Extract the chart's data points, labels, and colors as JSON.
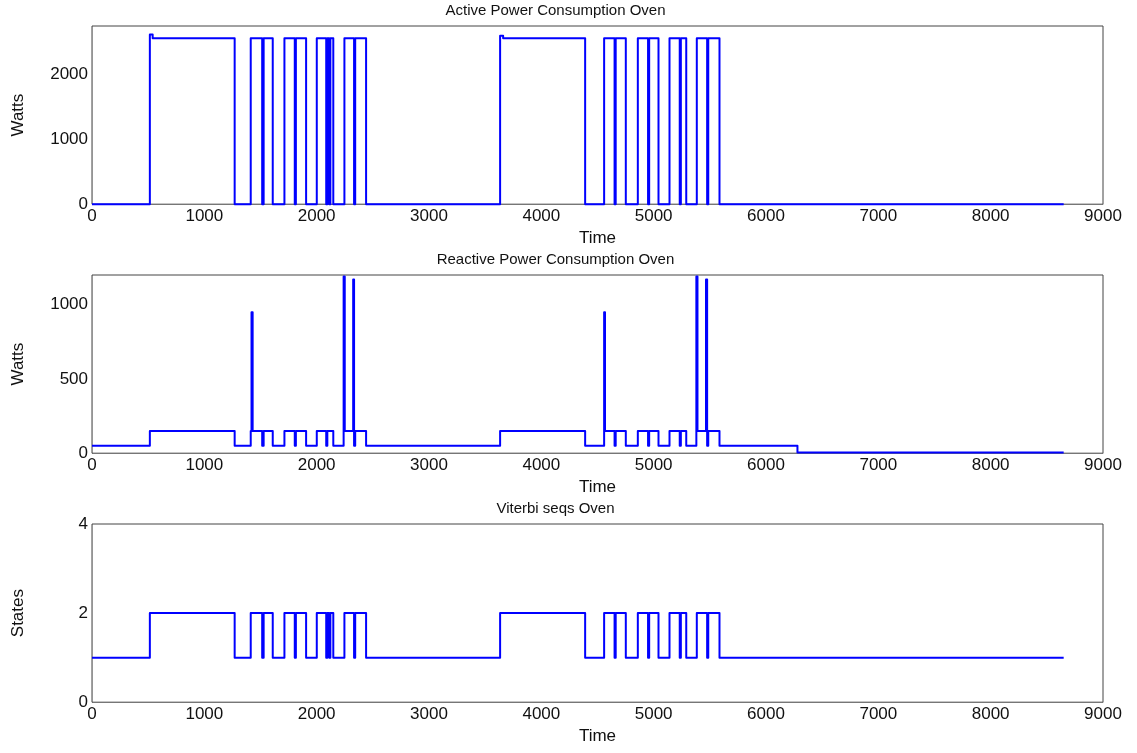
{
  "chart_data": [
    {
      "type": "step",
      "title": "Active Power Consumption Oven",
      "xlabel": "Time",
      "ylabel": "Watts",
      "xlim": [
        0,
        9000
      ],
      "xticks": [
        0,
        1000,
        2000,
        3000,
        4000,
        5000,
        6000,
        7000,
        8000,
        9000
      ],
      "ylim": [
        0,
        2750
      ],
      "yticks": [
        0,
        1000,
        2000
      ],
      "grid": false,
      "legend": false,
      "series": [
        {
          "color": "#0000ff",
          "x": [
            0,
            515,
            540,
            1270,
            1413,
            1515,
            1528,
            1609,
            1713,
            1805,
            1815,
            1906,
            2001,
            2085,
            2095,
            2112,
            2122,
            2148,
            2247,
            2333,
            2343,
            2440,
            3633,
            3660,
            4390,
            4559,
            4652,
            4662,
            4752,
            4859,
            4950,
            4960,
            5043,
            5141,
            5232,
            5242,
            5290,
            5384,
            5476,
            5486,
            5586,
            8650
          ],
          "values": [
            0,
            2620,
            2560,
            0,
            2560,
            0,
            2560,
            0,
            2560,
            0,
            2560,
            0,
            2560,
            0,
            2560,
            0,
            2560,
            0,
            2560,
            0,
            2560,
            0,
            2600,
            2560,
            0,
            2560,
            0,
            2560,
            0,
            2560,
            0,
            2560,
            0,
            2560,
            0,
            2560,
            0,
            2560,
            0,
            2560,
            0,
            0
          ]
        }
      ]
    },
    {
      "type": "step",
      "title": "Reactive Power Consumption Oven",
      "xlabel": "Time",
      "ylabel": "Watts",
      "xlim": [
        0,
        9000
      ],
      "xticks": [
        0,
        1000,
        2000,
        3000,
        4000,
        5000,
        6000,
        7000,
        8000,
        9000
      ],
      "ylim": [
        0,
        1200
      ],
      "yticks": [
        0,
        500,
        1000
      ],
      "grid": false,
      "legend": false,
      "series": [
        {
          "color": "#0000ff",
          "x": [
            0,
            515,
            1270,
            1413,
            1420,
            1430,
            1515,
            1528,
            1609,
            1713,
            1805,
            1815,
            1906,
            2001,
            2085,
            2095,
            2148,
            2240,
            2250,
            2325,
            2333,
            2343,
            2440,
            3633,
            4390,
            4559,
            4567,
            4652,
            4662,
            4752,
            4859,
            4950,
            4960,
            5043,
            5141,
            5232,
            5242,
            5290,
            5380,
            5390,
            5466,
            5476,
            5486,
            5586,
            6280,
            8650
          ],
          "values": [
            50,
            150,
            50,
            150,
            950,
            150,
            50,
            150,
            50,
            150,
            50,
            150,
            50,
            150,
            50,
            150,
            50,
            1190,
            150,
            1170,
            50,
            150,
            50,
            150,
            50,
            950,
            150,
            50,
            150,
            50,
            150,
            50,
            150,
            50,
            150,
            50,
            150,
            50,
            1190,
            150,
            1170,
            50,
            150,
            50,
            5,
            5
          ]
        }
      ]
    },
    {
      "type": "step",
      "title": "Viterbi seqs Oven",
      "xlabel": "Time",
      "ylabel": "States",
      "xlim": [
        0,
        9000
      ],
      "xticks": [
        0,
        1000,
        2000,
        3000,
        4000,
        5000,
        6000,
        7000,
        8000,
        9000
      ],
      "ylim": [
        0,
        4
      ],
      "yticks": [
        0,
        2,
        4
      ],
      "grid": false,
      "legend": false,
      "series": [
        {
          "color": "#0000ff",
          "x": [
            0,
            515,
            1270,
            1413,
            1515,
            1528,
            1609,
            1713,
            1805,
            1815,
            1906,
            2001,
            2085,
            2095,
            2112,
            2122,
            2148,
            2247,
            2333,
            2343,
            2440,
            3633,
            4390,
            4559,
            4652,
            4662,
            4752,
            4859,
            4950,
            4960,
            5043,
            5141,
            5232,
            5242,
            5290,
            5384,
            5476,
            5486,
            5586,
            8650
          ],
          "values": [
            1,
            2,
            1,
            2,
            1,
            2,
            1,
            2,
            1,
            2,
            1,
            2,
            1,
            2,
            1,
            2,
            1,
            2,
            1,
            2,
            1,
            2,
            1,
            2,
            1,
            2,
            1,
            2,
            1,
            2,
            1,
            2,
            1,
            2,
            1,
            2,
            1,
            2,
            1,
            1
          ]
        }
      ]
    }
  ]
}
